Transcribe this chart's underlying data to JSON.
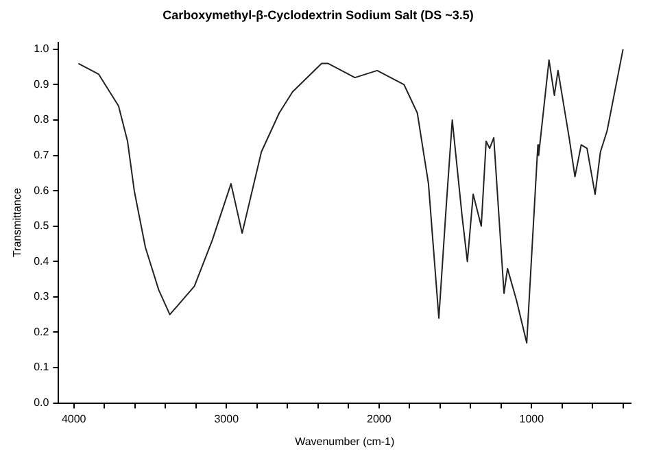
{
  "chart_data": {
    "type": "line",
    "title": "Carboxymethyl-β-Cyclodextrin Sodium Salt (DS ~3.5)",
    "xlabel": "Wavenumber (cm-1)",
    "ylabel": "Transmittance",
    "xlim": [
      4100,
      350
    ],
    "ylim": [
      0,
      1.02
    ],
    "xticks": [
      4000,
      {
        "value": 3800,
        "label": null
      },
      {
        "value": 3600,
        "label": null
      },
      {
        "value": 3400,
        "label": null
      },
      {
        "value": 3200,
        "label": null
      },
      3000,
      {
        "value": 2800,
        "label": null
      },
      {
        "value": 2600,
        "label": null
      },
      {
        "value": 2400,
        "label": null
      },
      {
        "value": 2200,
        "label": null
      },
      2000,
      {
        "value": 1800,
        "label": null
      },
      {
        "value": 1600,
        "label": null
      },
      {
        "value": 1400,
        "label": null
      },
      {
        "value": 1200,
        "label": null
      },
      1000,
      {
        "value": 800,
        "label": null
      },
      {
        "value": 600,
        "label": null
      },
      {
        "value": 400,
        "label": null
      }
    ],
    "yticks": [
      {
        "value": 0,
        "label": "0.0"
      },
      0.1,
      0.2,
      0.3,
      0.4,
      0.5,
      0.6,
      0.7,
      0.8,
      0.9,
      {
        "value": 1,
        "label": "1.0"
      }
    ],
    "grid": false,
    "legend": false,
    "marker": "none",
    "line_style": "solid",
    "series": [
      {
        "color": "#222222",
        "x": [
          3970,
          3838,
          3707,
          3648,
          3604,
          3531,
          3444,
          3371,
          3210,
          3093,
          2970,
          2897,
          2771,
          2654,
          2566,
          2376,
          2333,
          2158,
          2012,
          1836,
          1749,
          1676,
          1608,
          1559,
          1520,
          1456,
          1421,
          1383,
          1330,
          1298,
          1275,
          1248,
          1181,
          1158,
          1099,
          1032,
          959,
          954,
          886,
          851,
          827,
          754,
          716,
          675,
          637,
          584,
          549,
          505,
          401
        ],
        "values": [
          0.96,
          0.93,
          0.84,
          0.74,
          0.6,
          0.44,
          0.32,
          0.25,
          0.33,
          0.46,
          0.62,
          0.48,
          0.71,
          0.82,
          0.88,
          0.96,
          0.96,
          0.92,
          0.94,
          0.9,
          0.82,
          0.62,
          0.24,
          0.56,
          0.8,
          0.53,
          0.4,
          0.59,
          0.5,
          0.74,
          0.72,
          0.75,
          0.31,
          0.38,
          0.29,
          0.17,
          0.73,
          0.7,
          0.97,
          0.87,
          0.94,
          0.75,
          0.64,
          0.73,
          0.72,
          0.59,
          0.71,
          0.77,
          1.0
        ]
      }
    ]
  }
}
